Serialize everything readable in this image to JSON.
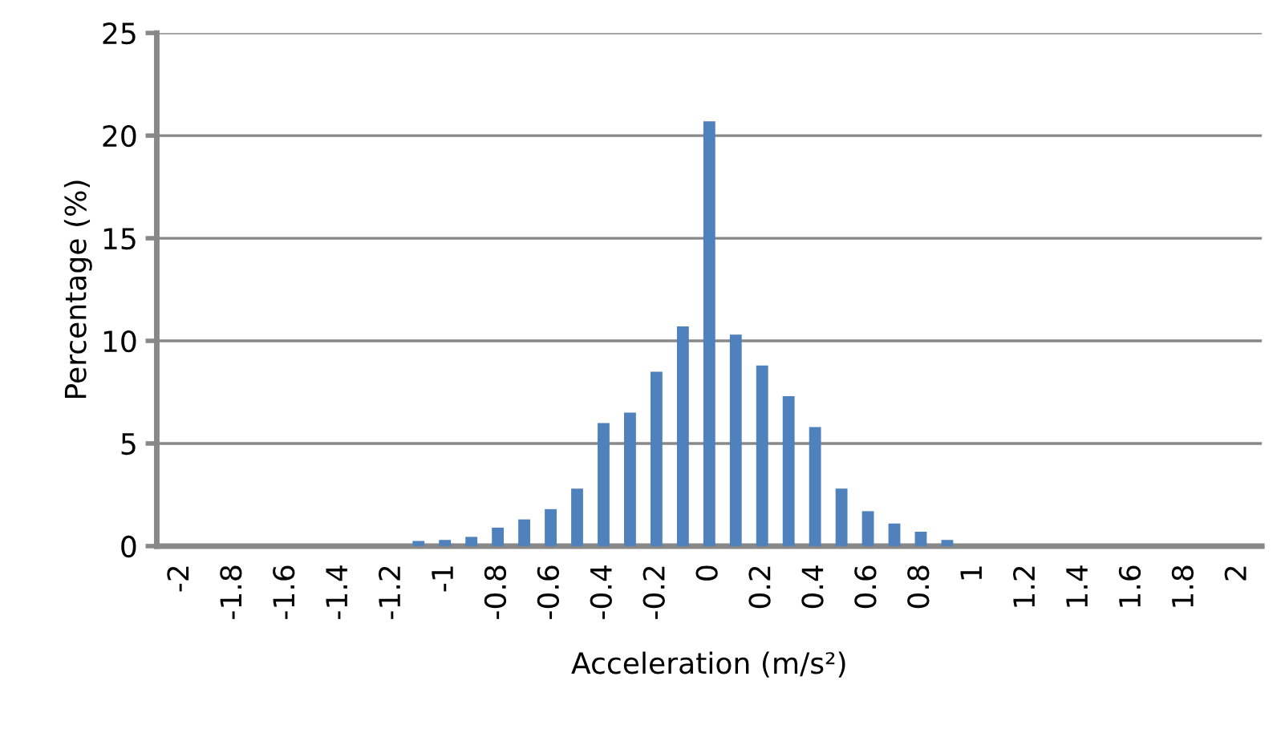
{
  "chart_data": {
    "type": "bar",
    "xlabel": "Acceleration (m/s²)",
    "ylabel": "Percentage (%)",
    "categories": [
      "-2",
      null,
      "-1.8",
      null,
      "-1.6",
      null,
      "-1.4",
      null,
      "-1.2",
      null,
      "-1",
      null,
      "-0.8",
      null,
      "-0.6",
      null,
      "-0.4",
      null,
      "-0.2",
      null,
      "0",
      null,
      "0.2",
      null,
      "0.4",
      null,
      "0.6",
      null,
      "0.8",
      null,
      "1",
      null,
      "1.2",
      null,
      "1.4",
      null,
      "1.6",
      null,
      "1.8",
      null,
      "2"
    ],
    "values": [
      0,
      0,
      0,
      0,
      0,
      0,
      0,
      0,
      0,
      0.25,
      0.3,
      0.45,
      0.9,
      1.3,
      1.8,
      2.8,
      6.0,
      6.5,
      8.5,
      10.7,
      20.7,
      10.3,
      8.8,
      7.3,
      5.8,
      2.8,
      1.7,
      1.1,
      0.7,
      0.3,
      null,
      0,
      0,
      0,
      0,
      0,
      0,
      0,
      0,
      0,
      0
    ],
    "color": "#4f81bd",
    "ylim": [
      0,
      25
    ],
    "yticks": [
      0,
      5,
      10,
      15,
      20,
      25
    ],
    "grid": "y"
  }
}
